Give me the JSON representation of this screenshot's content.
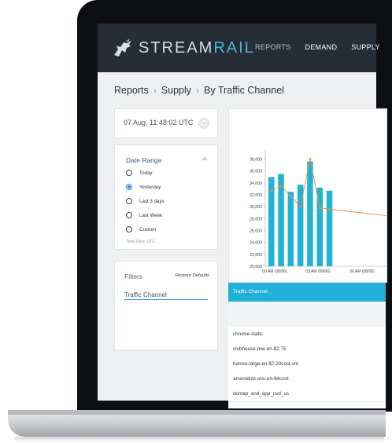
{
  "nav": {
    "logo_left": "STREAM",
    "logo_right": "RAIL",
    "items": [
      "REPORTS",
      "DEMAND",
      "SUPPLY"
    ]
  },
  "breadcrumb": [
    "Reports",
    "Supply",
    "By Traffic Channel"
  ],
  "time_card": {
    "timestamp": "07 Aug, 11:48:02 UTC"
  },
  "date_range": {
    "title": "Date Range",
    "options": [
      "Today",
      "Yesterday",
      "Last 3 days",
      "Last Week",
      "Custom"
    ],
    "selected": "Yesterday",
    "timezone": "Time Zone: UTC"
  },
  "filters": {
    "title": "Filters",
    "restore_label": "Restore Defaults",
    "input_value": "Traffic Channel"
  },
  "table": {
    "header": "Traffic Channel",
    "rows": [
      "chrome-static",
      "clubhouse-mw-en-$2.75",
      "harren-large-en-$7.20cost-vm",
      "amonetize-mix-en-$4cost",
      "dontap_and_app_nvd_us"
    ]
  },
  "colors": {
    "nav_bg": "#262d36",
    "accent": "#21b0d8",
    "line": "#f08a3c",
    "link_blue": "#2f86d6"
  },
  "chart_data": {
    "type": "bar",
    "yticks": [
      "38,000",
      "36,000",
      "34,000",
      "32,000",
      "30,000",
      "28,000",
      "26,000",
      "24,000",
      "22,000",
      "20,000"
    ],
    "ylim": [
      20000,
      39000
    ],
    "xticks": [
      "00 AM (08/06)",
      "03 AM (08/06)",
      "06 AM (08/06)"
    ],
    "series": [
      {
        "type": "bar",
        "values": [
          35000,
          35500,
          32500,
          33700,
          37600,
          33200,
          32700
        ]
      },
      {
        "type": "line",
        "values": [
          32700,
          33500,
          31800,
          30000,
          38000,
          29800,
          29600
        ]
      }
    ]
  }
}
